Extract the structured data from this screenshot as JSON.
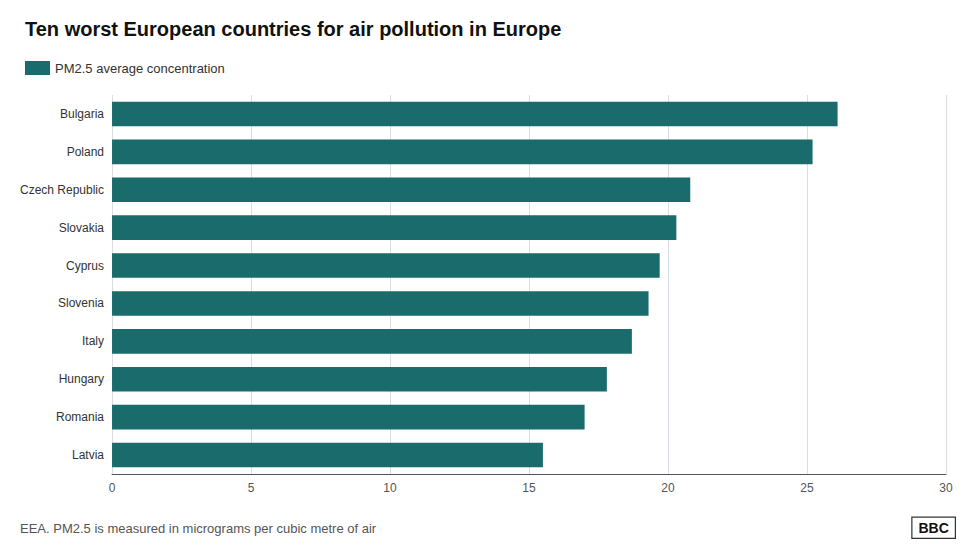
{
  "chart_data": {
    "type": "bar",
    "orientation": "horizontal",
    "title": "Ten worst European countries for air pollution in Europe",
    "categories": [
      "Bulgaria",
      "Poland",
      "Czech Republic",
      "Slovakia",
      "Cyprus",
      "Slovenia",
      "Italy",
      "Hungary",
      "Romania",
      "Latvia"
    ],
    "series": [
      {
        "name": "PM2.5 average concentration",
        "color": "#1a6b6b",
        "values": [
          26.1,
          25.2,
          20.8,
          20.3,
          19.7,
          19.3,
          18.7,
          17.8,
          17.0,
          15.5
        ]
      }
    ],
    "xlim": [
      0,
      30
    ],
    "xticks": [
      0,
      5,
      10,
      15,
      20,
      25,
      30
    ],
    "grid": true,
    "legend": "upper left",
    "annotations": [
      "EEA. PM2.5 is measured in micrograms per cubic metre of air",
      "BBC"
    ]
  }
}
